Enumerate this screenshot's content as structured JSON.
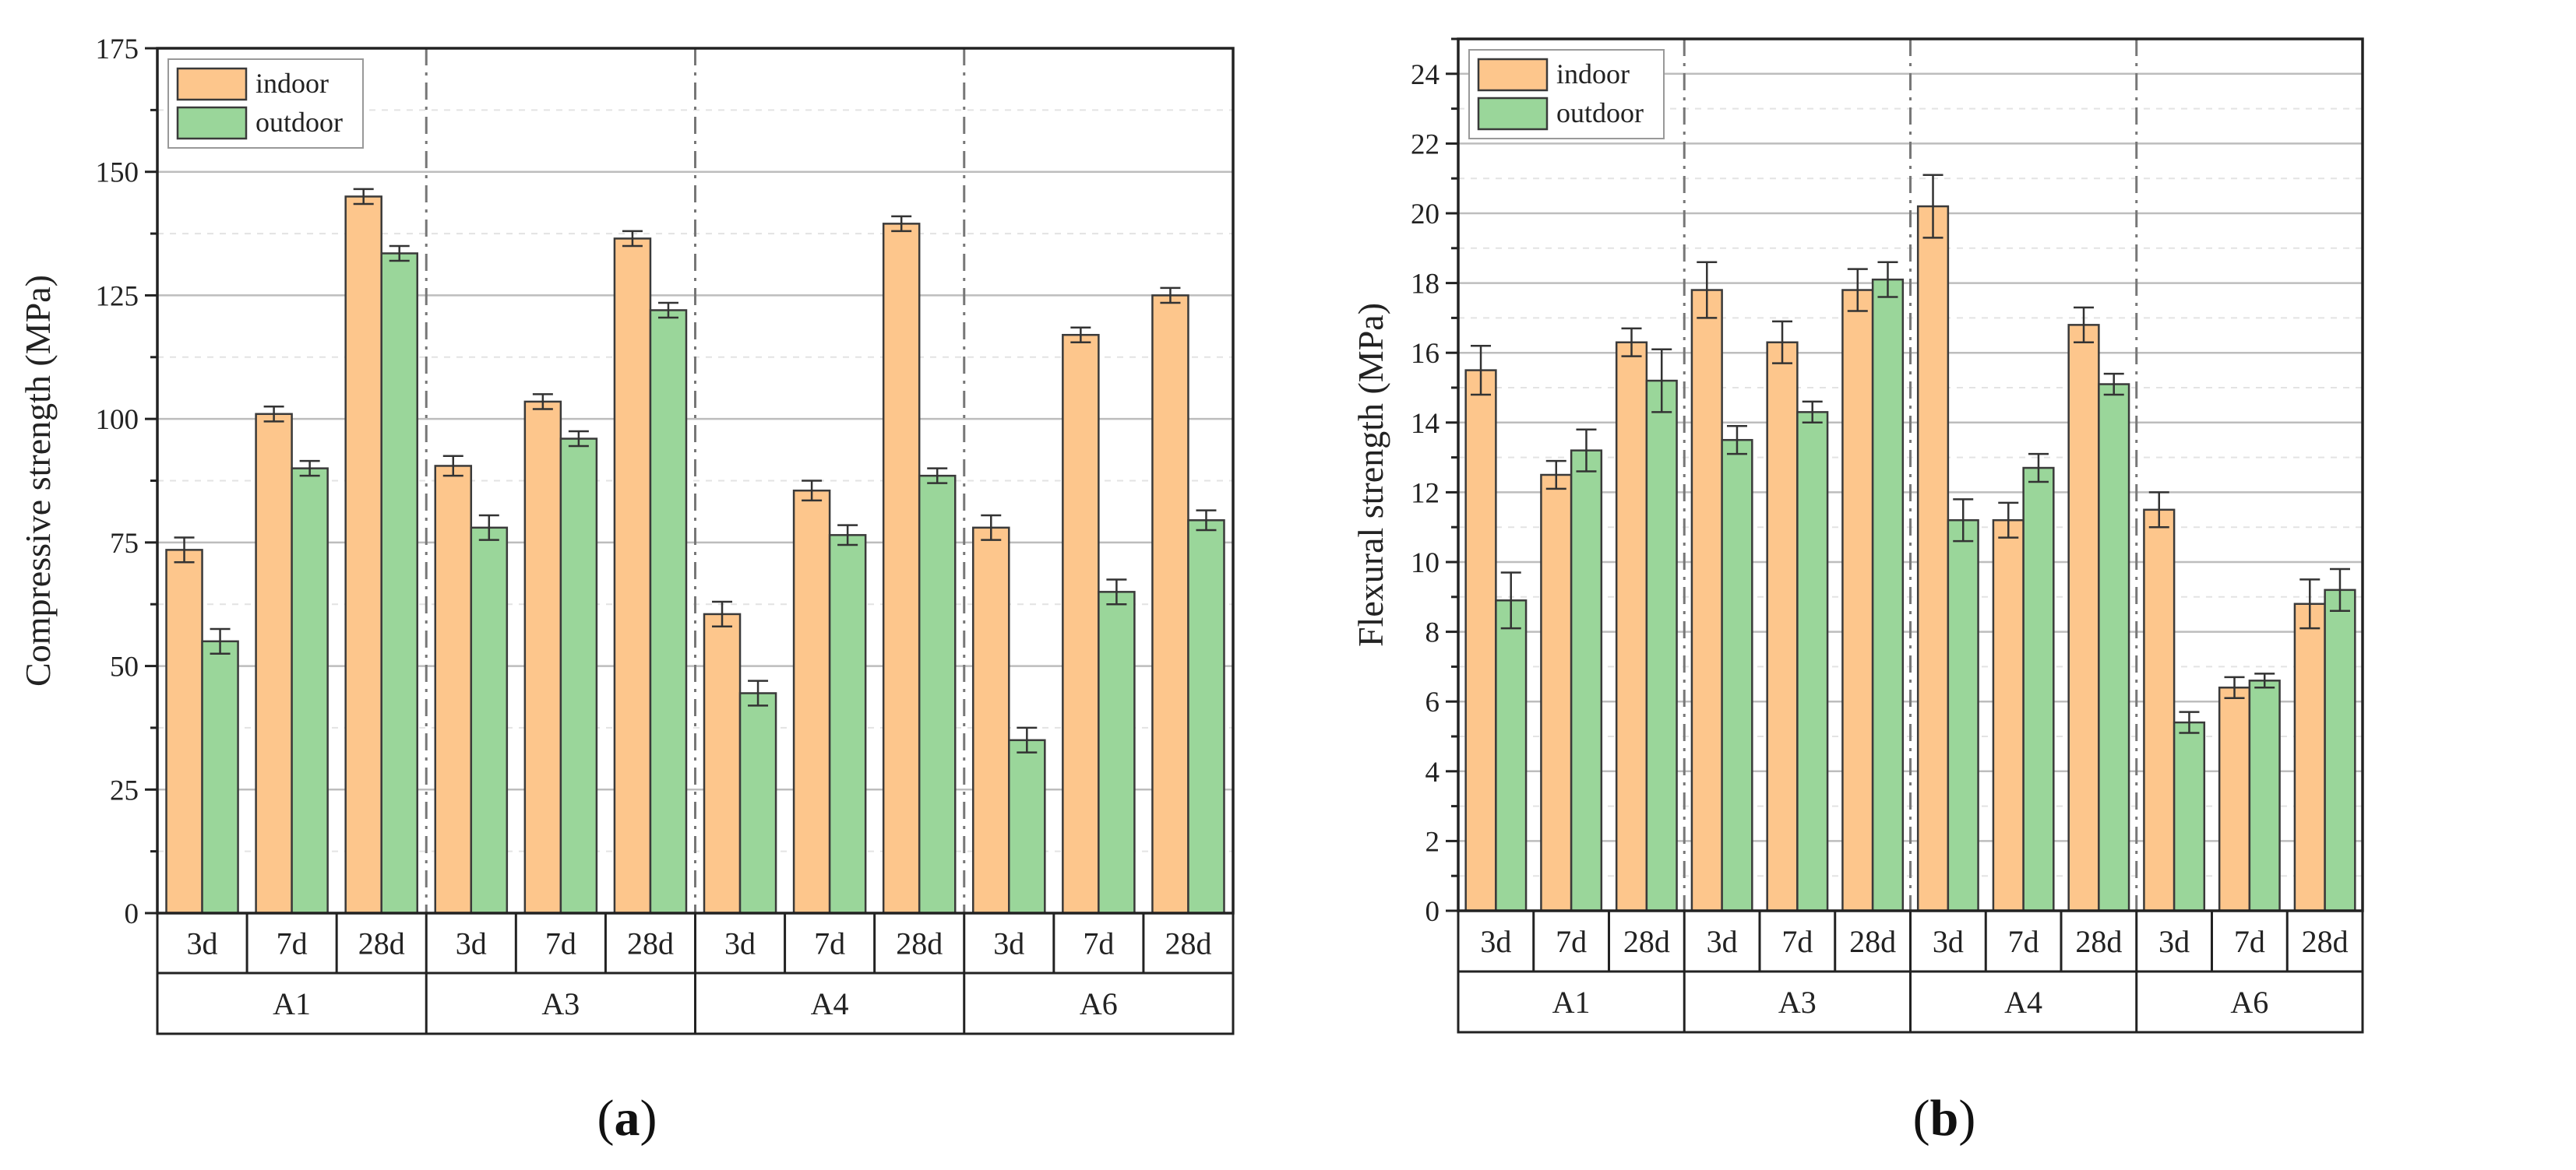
{
  "colors": {
    "indoor": "#FDC68C",
    "outdoor": "#9AD69A",
    "bar_stroke": "#3a3a3a",
    "grid_major": "#bdbdbd",
    "grid_minor": "#e3e3e3",
    "separator": "#777777",
    "axis": "#222222"
  },
  "chart_data": [
    {
      "type": "bar",
      "panel_label": "(a)",
      "label_prefix": "(",
      "label_letter": "a",
      "label_suffix": ")",
      "ylabel": "Compressive strength (MPa)",
      "xlabel": "",
      "ylim": [
        0,
        175
      ],
      "yticks": [
        0,
        25,
        50,
        75,
        100,
        125,
        150,
        175
      ],
      "grid": true,
      "legend_position": "top-left",
      "groups": [
        "A1",
        "A3",
        "A4",
        "A6"
      ],
      "ages": [
        "3d",
        "7d",
        "28d"
      ],
      "series": [
        {
          "name": "indoor",
          "values": [
            73.5,
            101,
            145,
            90.5,
            103.5,
            136.5,
            60.5,
            85.5,
            139.5,
            78,
            117,
            125
          ],
          "errors": [
            2.5,
            1.5,
            1.5,
            2.0,
            1.5,
            1.5,
            2.5,
            2.0,
            1.5,
            2.5,
            1.5,
            1.5
          ]
        },
        {
          "name": "outdoor",
          "values": [
            55,
            90,
            133.5,
            78,
            96,
            122,
            44.5,
            76.5,
            88.5,
            35,
            65,
            79.5
          ],
          "errors": [
            2.5,
            1.5,
            1.5,
            2.5,
            1.5,
            1.5,
            2.5,
            2.0,
            1.5,
            2.5,
            2.5,
            2.0
          ]
        }
      ]
    },
    {
      "type": "bar",
      "panel_label": "(b)",
      "label_prefix": "(",
      "label_letter": "b",
      "label_suffix": ")",
      "ylabel": "Flexural strength (MPa)",
      "xlabel": "",
      "ylim": [
        0,
        25
      ],
      "yticks": [
        0,
        2,
        4,
        6,
        8,
        10,
        12,
        14,
        16,
        18,
        20,
        22,
        24
      ],
      "grid": true,
      "legend_position": "top-left",
      "groups": [
        "A1",
        "A3",
        "A4",
        "A6"
      ],
      "ages": [
        "3d",
        "7d",
        "28d"
      ],
      "series": [
        {
          "name": "indoor",
          "values": [
            15.5,
            12.5,
            16.3,
            17.8,
            16.3,
            17.8,
            20.2,
            11.2,
            16.8,
            11.5,
            6.4,
            8.8
          ],
          "errors": [
            0.7,
            0.4,
            0.4,
            0.8,
            0.6,
            0.6,
            0.9,
            0.5,
            0.5,
            0.5,
            0.3,
            0.7
          ]
        },
        {
          "name": "outdoor",
          "values": [
            8.9,
            13.2,
            15.2,
            13.5,
            14.3,
            18.1,
            11.2,
            12.7,
            15.1,
            5.4,
            6.6,
            9.2
          ],
          "errors": [
            0.8,
            0.6,
            0.9,
            0.4,
            0.3,
            0.5,
            0.6,
            0.4,
            0.3,
            0.3,
            0.2,
            0.6
          ]
        }
      ]
    }
  ]
}
